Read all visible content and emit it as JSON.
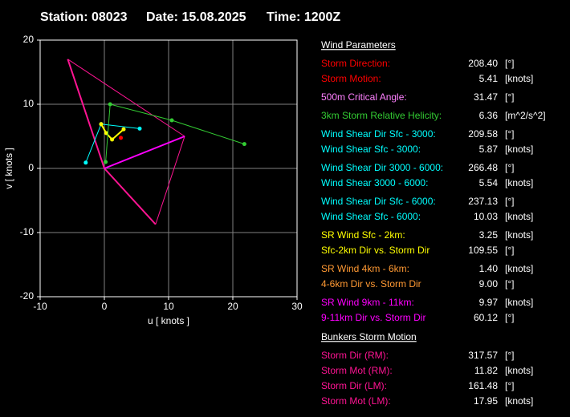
{
  "header": {
    "items": [
      "Station: 08023",
      "Date: 15.08.2025",
      "Time: 1200Z"
    ]
  },
  "chart_data": {
    "type": "hodograph",
    "xlabel": "u  [ knots ]",
    "ylabel": "v  [ knots ]",
    "xlim": [
      -10,
      30
    ],
    "ylim": [
      -20,
      20
    ],
    "xticks": [
      -10,
      0,
      10,
      20,
      30
    ],
    "yticks": [
      -20,
      -10,
      0,
      10,
      20
    ],
    "grid": true,
    "series": [
      {
        "color": "#ff1493",
        "x": [
          0,
          -5.7
        ],
        "values": [
          0,
          17.02
        ],
        "width": 2
      },
      {
        "color": "#ff1493",
        "x": [
          0,
          7.98
        ],
        "values": [
          0,
          -8.72
        ],
        "width": 2
      },
      {
        "color": "#ff1493",
        "x": [
          -5.7,
          12.5
        ],
        "values": [
          17.02,
          5
        ],
        "width": 1
      },
      {
        "color": "#ff1493",
        "x": [
          7.98,
          12.5
        ],
        "values": [
          -8.72,
          5
        ],
        "width": 1
      },
      {
        "color": "#ff00ff",
        "x": [
          0,
          12.5
        ],
        "values": [
          0,
          5
        ],
        "width": 2
      },
      {
        "color": "#00ffff",
        "x": [
          -2.9,
          -0.5,
          5.5
        ],
        "values": [
          0.9,
          6.9,
          6.2
        ],
        "width": 1,
        "markers": true
      },
      {
        "color": "#ffff00",
        "x": [
          -0.5,
          0.3,
          1.2,
          3.0
        ],
        "values": [
          6.9,
          5.5,
          4.5,
          6.1
        ],
        "width": 2,
        "markers": true
      },
      {
        "color": "#33cc33",
        "x": [
          0.2,
          0.9,
          10.5,
          21.8
        ],
        "values": [
          1,
          10,
          7.5,
          3.8
        ],
        "width": 1,
        "markers": true
      },
      {
        "color": "#ff0000",
        "x": [
          2.57
        ],
        "values": [
          4.76
        ],
        "width": 1,
        "markers": true
      }
    ]
  },
  "panel": {
    "sections": [
      {
        "title": "Wind Parameters",
        "groups": [
          [
            {
              "label": "Storm Direction:",
              "value": "208.40",
              "unit": "[°]",
              "color": "#ff0000"
            },
            {
              "label": "Storm Motion:",
              "value": "5.41",
              "unit": "[knots]",
              "color": "#ff0000"
            }
          ],
          [
            {
              "label": "500m Critical Angle:",
              "value": "31.47",
              "unit": "[°]",
              "color": "#ff80ff"
            }
          ],
          [
            {
              "label": "3km Storm Relative Helicity:",
              "value": "6.36",
              "unit": "[m^2/s^2]",
              "color": "#33cc33"
            }
          ],
          [
            {
              "label": "Wind Shear Dir Sfc - 3000:",
              "value": "209.58",
              "unit": "[°]",
              "color": "#00ffff"
            },
            {
              "label": "Wind Shear Sfc - 3000:",
              "value": "5.87",
              "unit": "[knots]",
              "color": "#00ffff"
            }
          ],
          [
            {
              "label": "Wind Shear Dir 3000 - 6000:",
              "value": "266.48",
              "unit": "[°]",
              "color": "#00ffff"
            },
            {
              "label": "Wind Shear 3000 - 6000:",
              "value": "5.54",
              "unit": "[knots]",
              "color": "#00ffff"
            }
          ],
          [
            {
              "label": "Wind Shear Dir Sfc - 6000:",
              "value": "237.13",
              "unit": "[°]",
              "color": "#00ffff"
            },
            {
              "label": "Wind Shear Sfc - 6000:",
              "value": "10.03",
              "unit": "[knots]",
              "color": "#00ffff"
            }
          ],
          [
            {
              "label": "SR Wind Sfc - 2km:",
              "value": "3.25",
              "unit": "[knots]",
              "color": "#ffff00"
            },
            {
              "label": "Sfc-2km Dir vs. Storm Dir",
              "value": "109.55",
              "unit": "[°]",
              "color": "#ffff00"
            }
          ],
          [
            {
              "label": "SR Wind 4km - 6km:",
              "value": "1.40",
              "unit": "[knots]",
              "color": "#ff9933"
            },
            {
              "label": "4-6km Dir vs. Storm Dir",
              "value": "9.00",
              "unit": "[°]",
              "color": "#ff9933"
            }
          ],
          [
            {
              "label": "SR Wind 9km - 11km:",
              "value": "9.97",
              "unit": "[knots]",
              "color": "#ff00ff"
            },
            {
              "label": "9-11km Dir vs. Storm Dir",
              "value": "60.12",
              "unit": "[°]",
              "color": "#ff00ff"
            }
          ]
        ]
      },
      {
        "title": "Bunkers Storm Motion",
        "groups": [
          [
            {
              "label": "Storm Dir (RM):",
              "value": "317.57",
              "unit": "[°]",
              "color": "#ff1493"
            },
            {
              "label": "Storm Mot (RM):",
              "value": "11.82",
              "unit": "[knots]",
              "color": "#ff1493"
            },
            {
              "label": "Storm Dir (LM):",
              "value": "161.48",
              "unit": "[°]",
              "color": "#ff1493"
            },
            {
              "label": "Storm Mot (LM):",
              "value": "17.95",
              "unit": "[knots]",
              "color": "#ff1493"
            }
          ]
        ]
      }
    ]
  }
}
